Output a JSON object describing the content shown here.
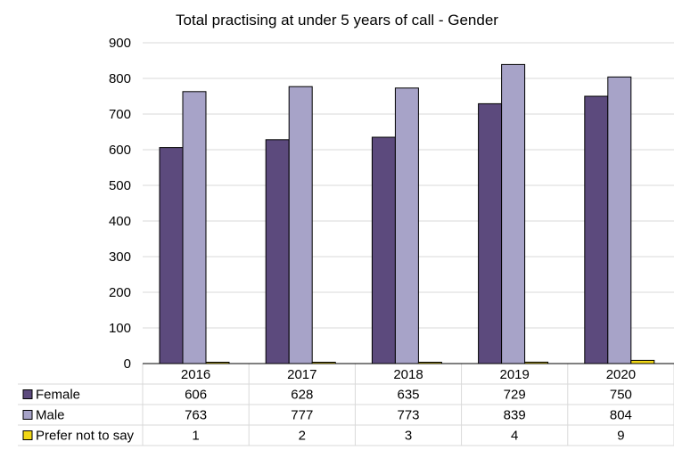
{
  "chart_data": {
    "type": "bar",
    "title": "Total practising at under 5 years of call - Gender",
    "xlabel": "",
    "ylabel": "",
    "ylim": [
      0,
      900
    ],
    "yticks": [
      "0",
      "100",
      "200",
      "300",
      "400",
      "500",
      "600",
      "700",
      "800",
      "900"
    ],
    "grid": true,
    "legend": "data-table-bottom",
    "categories": [
      "2016",
      "2017",
      "2018",
      "2019",
      "2020"
    ],
    "series": [
      {
        "name": "Female",
        "color": "#5c4a7d",
        "values": [
          606,
          628,
          635,
          729,
          750
        ]
      },
      {
        "name": "Male",
        "color": "#a7a3c8",
        "values": [
          763,
          777,
          773,
          839,
          804
        ]
      },
      {
        "name": "Prefer not to say",
        "color": "#f2d816",
        "values": [
          1,
          2,
          3,
          4,
          9
        ]
      }
    ]
  }
}
